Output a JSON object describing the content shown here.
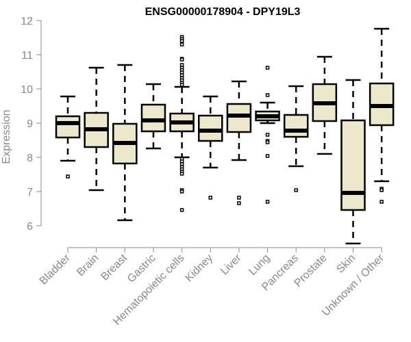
{
  "chart_data": {
    "type": "boxplot",
    "title": "ENSG00000178904 - DPY19L3",
    "xlabel": "",
    "ylabel": "Expression",
    "ylim": [
      6,
      12
    ],
    "yticks": [
      6,
      7,
      8,
      9,
      10,
      11,
      12
    ],
    "grid": false,
    "box_fill": "#ede7cc",
    "categories": [
      "Bladder",
      "Brain",
      "Breast",
      "Gastric",
      "Hematopoietic cells",
      "Kidney",
      "Liver",
      "Lung",
      "Pancreas",
      "Prostate",
      "Skin",
      "Unknown / Other"
    ],
    "boxes": [
      {
        "low": 7.9,
        "q1": 8.58,
        "median": 9.0,
        "q3": 9.2,
        "high": 9.78,
        "outliers": [
          7.44
        ]
      },
      {
        "low": 7.04,
        "q1": 8.3,
        "median": 8.82,
        "q3": 9.3,
        "high": 10.62,
        "outliers": []
      },
      {
        "low": 6.16,
        "q1": 7.82,
        "median": 8.42,
        "q3": 8.98,
        "high": 10.7,
        "outliers": []
      },
      {
        "low": 8.26,
        "q1": 8.76,
        "median": 9.08,
        "q3": 9.54,
        "high": 10.14,
        "outliers": []
      },
      {
        "low": 8.0,
        "q1": 8.76,
        "median": 9.02,
        "q3": 9.28,
        "high": 10.06,
        "outliers": [
          11.52,
          11.46,
          11.4,
          11.3,
          10.88,
          10.86,
          10.7,
          10.62,
          10.55,
          10.48,
          10.4,
          10.32,
          10.25,
          10.18,
          10.12,
          7.95,
          7.88,
          7.8,
          7.72,
          7.65,
          7.58,
          7.52,
          7.04,
          7.0,
          6.46
        ]
      },
      {
        "low": 7.7,
        "q1": 8.48,
        "median": 8.78,
        "q3": 9.22,
        "high": 9.78,
        "outliers": [
          6.82
        ]
      },
      {
        "low": 7.92,
        "q1": 8.74,
        "median": 9.22,
        "q3": 9.56,
        "high": 10.22,
        "outliers": [
          6.82,
          6.66
        ]
      },
      {
        "low": 9.0,
        "q1": 9.08,
        "median": 9.2,
        "q3": 9.34,
        "high": 9.6,
        "outliers": [
          10.62,
          9.82,
          8.66,
          8.48,
          8.44,
          8.04,
          6.7
        ]
      },
      {
        "low": 7.74,
        "q1": 8.6,
        "median": 8.78,
        "q3": 9.24,
        "high": 10.08,
        "outliers": [
          7.04
        ]
      },
      {
        "low": 8.1,
        "q1": 9.06,
        "median": 9.58,
        "q3": 10.14,
        "high": 10.94,
        "outliers": []
      },
      {
        "low": 5.48,
        "q1": 6.46,
        "median": 6.96,
        "q3": 9.08,
        "high": 10.26,
        "outliers": []
      },
      {
        "low": 7.3,
        "q1": 8.94,
        "median": 9.5,
        "q3": 10.16,
        "high": 11.76,
        "outliers": [
          7.08,
          7.04,
          6.7
        ]
      }
    ]
  }
}
